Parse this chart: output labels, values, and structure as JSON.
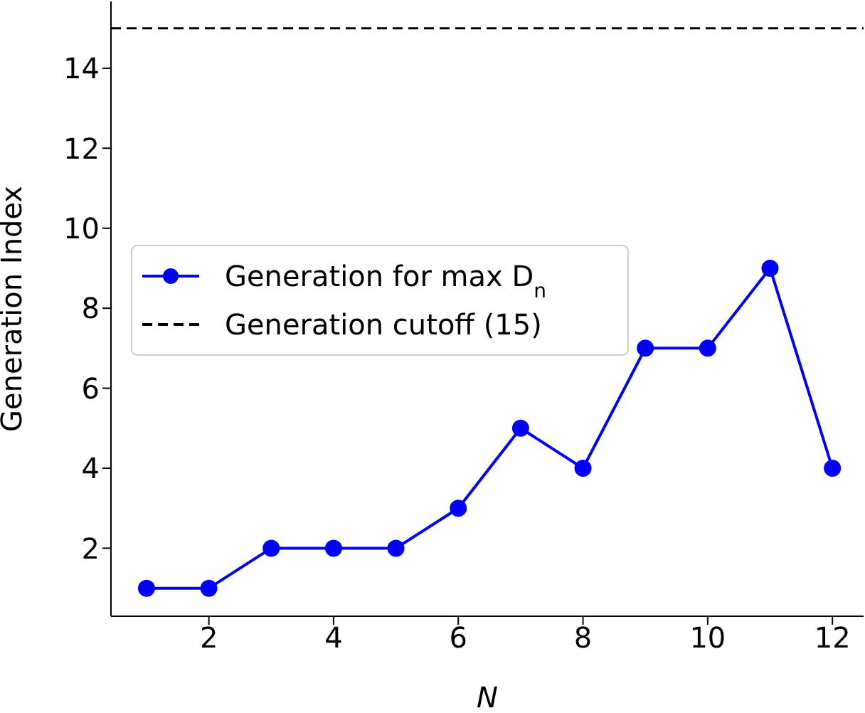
{
  "chart_data": {
    "type": "line",
    "xlabel": "N",
    "ylabel": "Generation Index",
    "x": [
      1,
      2,
      3,
      4,
      5,
      6,
      7,
      8,
      9,
      10,
      11,
      12
    ],
    "series": [
      {
        "name": "Generation for max D$_{n}$",
        "color": "#0000ff",
        "values": [
          1,
          1,
          2,
          2,
          2,
          3,
          5,
          4,
          7,
          7,
          9,
          4
        ]
      }
    ],
    "xlim": [
      0.43,
      12.5
    ],
    "xticks": [
      2,
      4,
      6,
      8,
      10,
      12
    ],
    "ylim": [
      0.3,
      15.67
    ],
    "yticks": [
      2,
      4,
      6,
      8,
      10,
      12,
      14
    ],
    "ref_lines": [
      {
        "axis": "y",
        "value": 15,
        "label": "Generation cutoff (15)",
        "color": "#000000",
        "line_style": "dashed"
      }
    ],
    "marker": "circle",
    "line_style": "solid",
    "grid": false,
    "legend": "center left"
  }
}
